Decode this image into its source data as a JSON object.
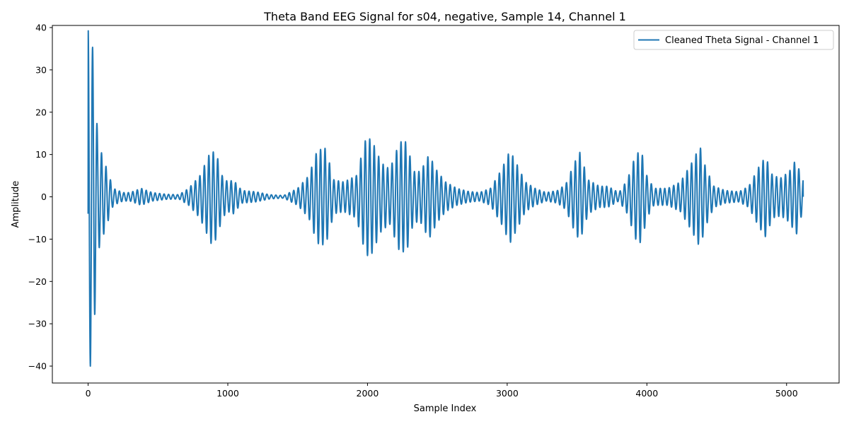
{
  "chart_data": {
    "type": "line",
    "title": "Theta Band EEG Signal for s04, negative, Sample 14, Channel 1",
    "xlabel": "Sample Index",
    "ylabel": "Amplitude",
    "xlim": [
      -256,
      5376
    ],
    "ylim": [
      -44,
      40.5
    ],
    "xticks": [
      0,
      1000,
      2000,
      3000,
      4000,
      5000
    ],
    "xtick_labels": [
      "0",
      "1000",
      "2000",
      "3000",
      "4000",
      "5000"
    ],
    "yticks": [
      -40,
      -30,
      -20,
      -10,
      0,
      10,
      20,
      30,
      40
    ],
    "ytick_labels": [
      "−40",
      "−30",
      "−20",
      "−10",
      "0",
      "10",
      "20",
      "30",
      "40"
    ],
    "grid": false,
    "legend_position": "top-right",
    "series": [
      {
        "name": "Cleaned Theta Signal - Channel 1",
        "color": "#1f77b4",
        "n_samples": 5120,
        "start_value": -4,
        "end_value": 0,
        "cycle_period_samples": 32,
        "peak_envelope": [
          [
            0,
            40
          ],
          [
            16,
            40
          ],
          [
            40,
            33
          ],
          [
            70,
            13
          ],
          [
            100,
            10
          ],
          [
            140,
            6
          ],
          [
            180,
            2
          ],
          [
            250,
            1
          ],
          [
            300,
            1
          ],
          [
            380,
            2
          ],
          [
            460,
            1
          ],
          [
            560,
            0.6
          ],
          [
            650,
            0.5
          ],
          [
            720,
            2
          ],
          [
            800,
            5
          ],
          [
            880,
            11
          ],
          [
            920,
            10
          ],
          [
            960,
            5
          ],
          [
            1000,
            3.5
          ],
          [
            1040,
            4
          ],
          [
            1100,
            1.5
          ],
          [
            1200,
            1.2
          ],
          [
            1300,
            0.5
          ],
          [
            1400,
            0.3
          ],
          [
            1500,
            2
          ],
          [
            1580,
            5
          ],
          [
            1640,
            11
          ],
          [
            1700,
            11.5
          ],
          [
            1760,
            4
          ],
          [
            1830,
            3.5
          ],
          [
            1920,
            5
          ],
          [
            1990,
            14
          ],
          [
            2030,
            13.5
          ],
          [
            2100,
            8
          ],
          [
            2160,
            6.5
          ],
          [
            2230,
            13
          ],
          [
            2280,
            13
          ],
          [
            2330,
            6
          ],
          [
            2380,
            6
          ],
          [
            2440,
            10
          ],
          [
            2500,
            6
          ],
          [
            2560,
            3.5
          ],
          [
            2640,
            2
          ],
          [
            2720,
            1.3
          ],
          [
            2800,
            1
          ],
          [
            2880,
            2
          ],
          [
            2960,
            6.5
          ],
          [
            3020,
            11
          ],
          [
            3080,
            7
          ],
          [
            3130,
            3.5
          ],
          [
            3200,
            2
          ],
          [
            3280,
            1
          ],
          [
            3360,
            1.5
          ],
          [
            3420,
            3
          ],
          [
            3480,
            8
          ],
          [
            3520,
            10.5
          ],
          [
            3580,
            4
          ],
          [
            3660,
            2.5
          ],
          [
            3720,
            2.5
          ],
          [
            3800,
            1
          ],
          [
            3860,
            4
          ],
          [
            3920,
            10
          ],
          [
            3960,
            11
          ],
          [
            4000,
            5
          ],
          [
            4050,
            2
          ],
          [
            4150,
            2
          ],
          [
            4240,
            3.5
          ],
          [
            4320,
            8
          ],
          [
            4380,
            12
          ],
          [
            4420,
            7
          ],
          [
            4480,
            2.5
          ],
          [
            4560,
            1.5
          ],
          [
            4660,
            1.2
          ],
          [
            4730,
            2.5
          ],
          [
            4800,
            7
          ],
          [
            4850,
            9.5
          ],
          [
            4900,
            5
          ],
          [
            4960,
            4.5
          ],
          [
            5020,
            6
          ],
          [
            5070,
            9
          ],
          [
            5100,
            5
          ],
          [
            5120,
            4
          ]
        ]
      }
    ]
  }
}
